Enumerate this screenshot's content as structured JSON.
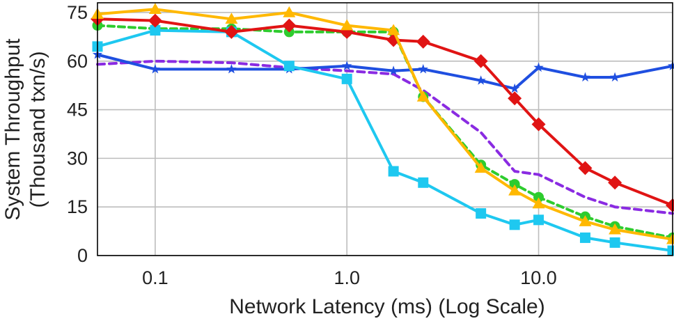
{
  "chart_data": {
    "type": "line",
    "title": "",
    "xlabel": "Network Latency (ms) (Log Scale)",
    "ylabel_line1": "System Throughput",
    "ylabel_line2": "(Thousand txn/s)",
    "xscale": "log",
    "xlim": [
      0.05,
      50
    ],
    "ylim": [
      0,
      78
    ],
    "xticks": [
      {
        "value": 0.1,
        "label": "0.1"
      },
      {
        "value": 1.0,
        "label": "1.0"
      },
      {
        "value": 10.0,
        "label": "10.0"
      }
    ],
    "yticks": [
      {
        "value": 0,
        "label": "0"
      },
      {
        "value": 15,
        "label": "15"
      },
      {
        "value": 30,
        "label": "30"
      },
      {
        "value": 45,
        "label": "45"
      },
      {
        "value": 60,
        "label": "60"
      },
      {
        "value": 75,
        "label": "75"
      }
    ],
    "grid": true,
    "series": [
      {
        "name": "series-purple",
        "color": "#8a2be2",
        "dash": "10,7",
        "marker": "none",
        "x": [
          0.05,
          0.1,
          0.25,
          0.5,
          1.0,
          1.75,
          2.5,
          5,
          7.5,
          10,
          17.5,
          25,
          50
        ],
        "y": [
          59,
          60,
          59.5,
          58,
          57,
          56,
          51,
          38,
          26,
          25,
          18,
          15,
          13
        ]
      },
      {
        "name": "series-green",
        "color": "#2ecc2e",
        "dash": "9,6",
        "marker": "circle",
        "x": [
          0.05,
          0.1,
          0.25,
          0.5,
          1.0,
          1.75,
          2.5,
          5,
          7.5,
          10,
          17.5,
          25,
          50
        ],
        "y": [
          71,
          70,
          70,
          69,
          69,
          69,
          49,
          28,
          22,
          18,
          12,
          9,
          5.5
        ]
      },
      {
        "name": "series-blue",
        "color": "#1f4fe0",
        "dash": "",
        "marker": "star",
        "x": [
          0.05,
          0.1,
          0.25,
          0.5,
          1.0,
          1.75,
          2.5,
          5,
          7.5,
          10,
          17.5,
          25,
          50
        ],
        "y": [
          62,
          57.5,
          57.5,
          57.5,
          58.5,
          57,
          57.5,
          54,
          51.5,
          58,
          55,
          55,
          58.5
        ]
      },
      {
        "name": "series-cyan",
        "color": "#1ec8f0",
        "dash": "",
        "marker": "square",
        "x": [
          0.05,
          0.1,
          0.25,
          0.5,
          1.0,
          1.75,
          2.5,
          5,
          7.5,
          10,
          17.5,
          25,
          50
        ],
        "y": [
          64.5,
          69.5,
          69,
          58.5,
          54.5,
          26,
          22.5,
          13,
          9.5,
          11,
          5.5,
          4,
          1.5
        ]
      },
      {
        "name": "series-red",
        "color": "#e01414",
        "dash": "",
        "marker": "diamond",
        "x": [
          0.05,
          0.1,
          0.25,
          0.5,
          1.0,
          1.75,
          2.5,
          5,
          7.5,
          10,
          17.5,
          25,
          50
        ],
        "y": [
          73,
          72.5,
          69,
          71,
          69,
          66.5,
          66,
          60,
          48.5,
          40.5,
          27,
          22.5,
          15.5
        ]
      },
      {
        "name": "series-orange",
        "color": "#ffb800",
        "dash": "",
        "marker": "triangle",
        "x": [
          0.05,
          0.1,
          0.25,
          0.5,
          1.0,
          1.75,
          2.5,
          5,
          7.5,
          10,
          17.5,
          25,
          50
        ],
        "y": [
          74.5,
          76,
          73,
          75,
          71,
          69.5,
          49,
          27,
          20,
          16,
          10.5,
          8,
          5
        ]
      }
    ]
  }
}
